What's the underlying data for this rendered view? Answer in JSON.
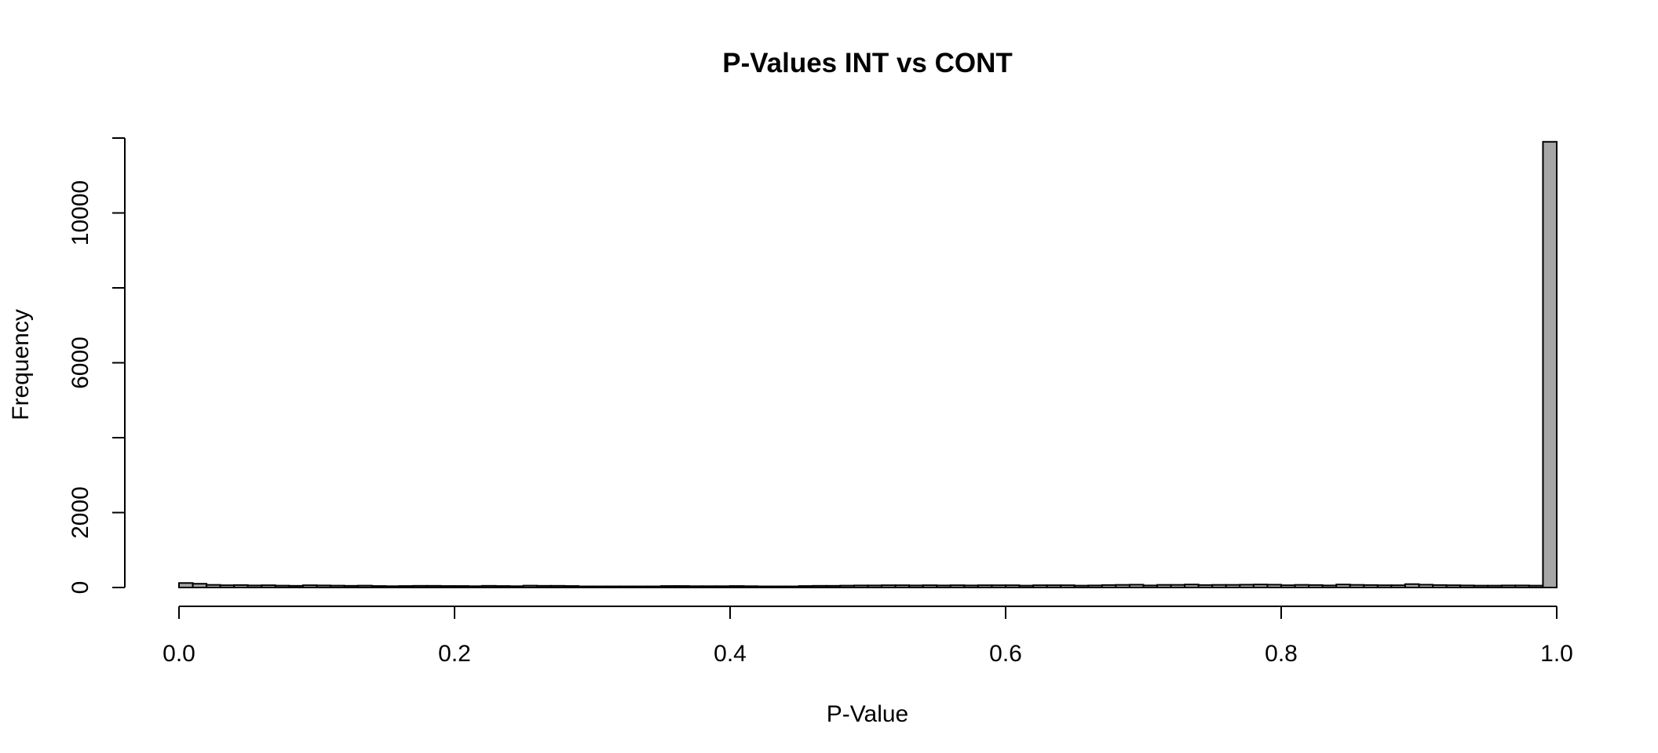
{
  "chart_data": {
    "type": "bar",
    "title": "P-Values INT vs CONT",
    "xlabel": "P-Value",
    "ylabel": "Frequency",
    "xlim": [
      0.0,
      1.0
    ],
    "ylim": [
      0,
      12000
    ],
    "x_ticks": [
      "0.0",
      "0.2",
      "0.4",
      "0.6",
      "0.8",
      "1.0"
    ],
    "x_tick_values": [
      0.0,
      0.2,
      0.4,
      0.6,
      0.8,
      1.0
    ],
    "y_ticks": [
      "0",
      "2000",
      "6000",
      "10000"
    ],
    "y_tick_values": [
      0,
      2000,
      4000,
      6000,
      8000,
      10000,
      12000
    ],
    "y_tick_labels": [
      "0",
      "2000",
      "",
      "6000",
      "",
      "10000",
      ""
    ],
    "bin_width": 0.01,
    "bin_start": 0.0,
    "values": [
      120,
      100,
      70,
      60,
      65,
      55,
      60,
      50,
      45,
      60,
      55,
      50,
      45,
      50,
      40,
      35,
      40,
      45,
      45,
      40,
      40,
      35,
      45,
      40,
      35,
      50,
      45,
      45,
      40,
      30,
      30,
      30,
      30,
      30,
      30,
      40,
      40,
      35,
      35,
      35,
      40,
      35,
      30,
      30,
      30,
      40,
      45,
      45,
      50,
      55,
      55,
      60,
      60,
      55,
      60,
      55,
      60,
      55,
      60,
      60,
      60,
      50,
      60,
      60,
      60,
      50,
      55,
      65,
      70,
      75,
      55,
      70,
      70,
      80,
      65,
      70,
      70,
      75,
      80,
      75,
      60,
      70,
      65,
      55,
      80,
      70,
      65,
      60,
      60,
      90,
      75,
      65,
      60,
      55,
      50,
      50,
      55,
      55,
      50,
      11900
    ]
  }
}
